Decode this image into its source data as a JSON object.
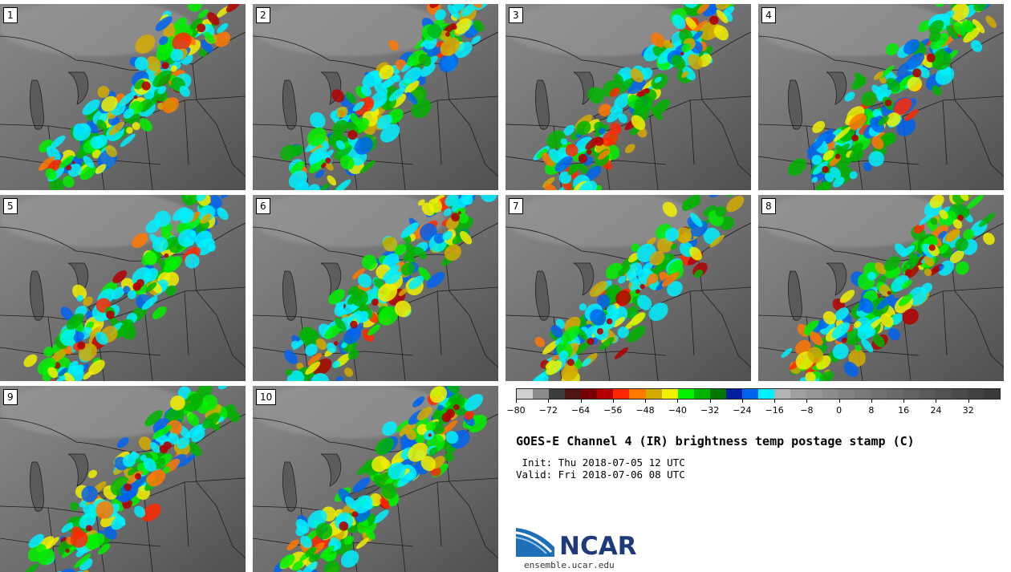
{
  "panels": [
    {
      "label": "1"
    },
    {
      "label": "2"
    },
    {
      "label": "3"
    },
    {
      "label": "4"
    },
    {
      "label": "5"
    },
    {
      "label": "6"
    },
    {
      "label": "7"
    },
    {
      "label": "8"
    },
    {
      "label": "9"
    },
    {
      "label": "10"
    }
  ],
  "colorbar": {
    "colors": [
      "#d2d2d2",
      "#8c8c8c",
      "#3c3c3c",
      "#501414",
      "#780000",
      "#b40000",
      "#ff2800",
      "#ff7800",
      "#d2aa00",
      "#f0f000",
      "#00f000",
      "#00b400",
      "#007800",
      "#001ea0",
      "#0064f0",
      "#00f0ff",
      "#b4b4b4",
      "#a0a0a0",
      "#969696",
      "#8c8c8c",
      "#828282",
      "#7a7a7a",
      "#727272",
      "#6a6a6a",
      "#626262",
      "#5a5a5a",
      "#525252",
      "#4a4a4a",
      "#424242",
      "#3a3a3a"
    ],
    "ticks": [
      "−80",
      "−72",
      "−64",
      "−56",
      "−48",
      "−40",
      "−32",
      "−24",
      "−16",
      "−8",
      "0",
      "8",
      "16",
      "24",
      "32"
    ]
  },
  "title": "GOES-E Channel 4 (IR) brightness temp postage stamp (C)",
  "init": " Init: Thu 2018-07-05 12 UTC",
  "valid": "Valid: Fri 2018-07-06 08 UTC",
  "logo": {
    "name": "ncar-logo",
    "text": "NCAR",
    "color": "#1f6fb8"
  },
  "site": "ensemble.ucar.edu"
}
